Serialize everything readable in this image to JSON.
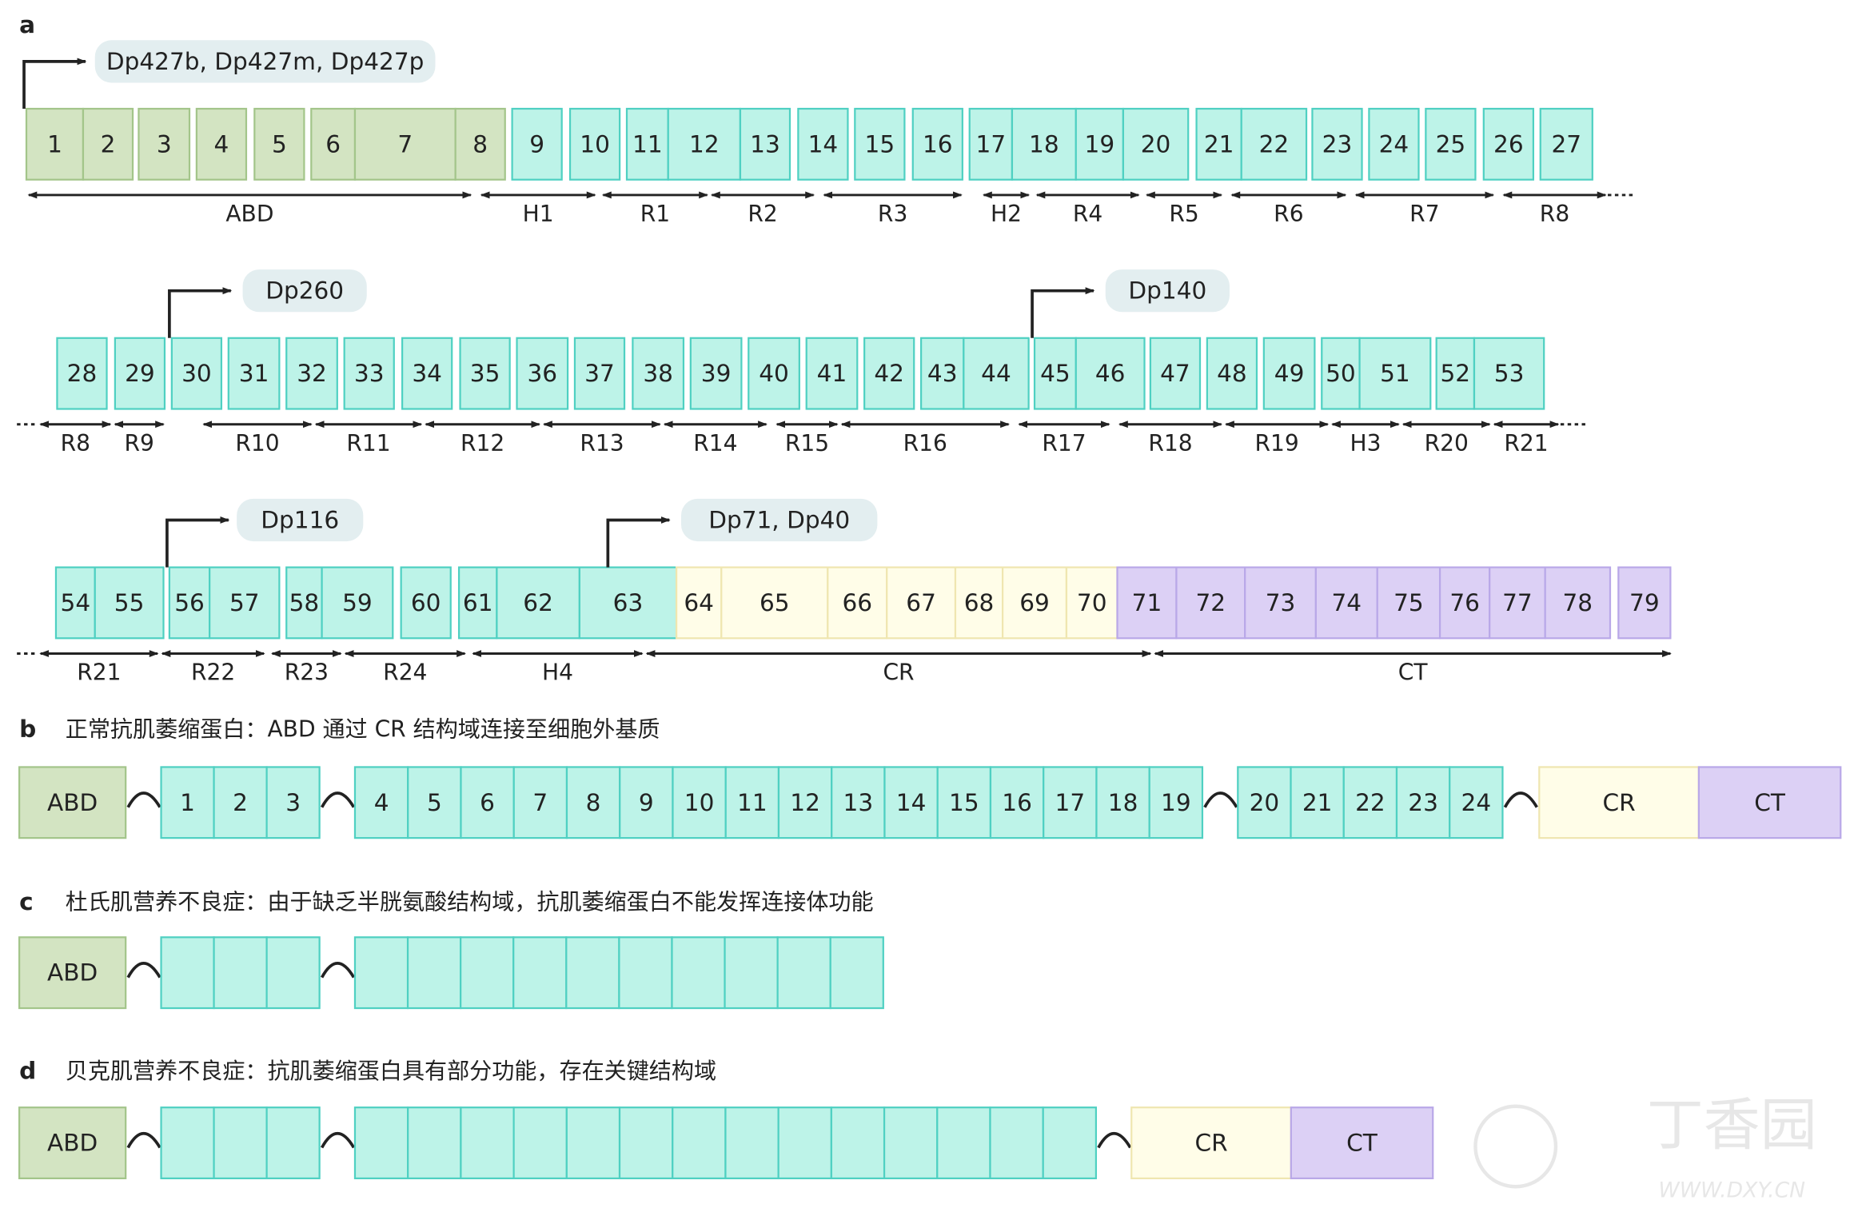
{
  "panel_a": {
    "label": "a",
    "rows": [
      {
        "promoters": [
          "Dp427b, Dp427m, Dp427p"
        ],
        "exons": [
          1,
          2,
          3,
          4,
          5,
          6,
          7,
          8,
          9,
          10,
          11,
          12,
          13,
          14,
          15,
          16,
          17,
          18,
          19,
          20,
          21,
          22,
          23,
          24,
          25,
          26,
          27
        ],
        "domains": [
          "ABD",
          "H1",
          "R1",
          "R2",
          "R3",
          "H2",
          "R4",
          "R5",
          "R6",
          "R7",
          "R8"
        ]
      },
      {
        "promoters": [
          "Dp260",
          "Dp140"
        ],
        "exons": [
          28,
          29,
          30,
          31,
          32,
          33,
          34,
          35,
          36,
          37,
          38,
          39,
          40,
          41,
          42,
          43,
          44,
          45,
          46,
          47,
          48,
          49,
          50,
          51,
          52,
          53
        ],
        "domains": [
          "R8",
          "R9",
          "R10",
          "R11",
          "R12",
          "R13",
          "R14",
          "R15",
          "R16",
          "R17",
          "R18",
          "R19",
          "H3",
          "R20",
          "R21"
        ]
      },
      {
        "promoters": [
          "Dp116",
          "Dp71, Dp40"
        ],
        "exons": [
          54,
          55,
          56,
          57,
          58,
          59,
          60,
          61,
          62,
          63,
          64,
          65,
          66,
          67,
          68,
          69,
          70,
          71,
          72,
          73,
          74,
          75,
          76,
          77,
          78,
          79
        ],
        "domains": [
          "R21",
          "R22",
          "R23",
          "R24",
          "H4",
          "CR",
          "CT"
        ]
      }
    ]
  },
  "panel_b": {
    "label": "b",
    "caption": "正常抗肌萎缩蛋白：ABD 通过 CR 结构域连接至细胞外基质",
    "blocks": [
      "ABD",
      "1",
      "2",
      "3",
      "4",
      "5",
      "6",
      "7",
      "8",
      "9",
      "10",
      "11",
      "12",
      "13",
      "14",
      "15",
      "16",
      "17",
      "18",
      "19",
      "20",
      "21",
      "22",
      "23",
      "24",
      "CR",
      "CT"
    ]
  },
  "panel_c": {
    "label": "c",
    "caption": "杜氏肌营养不良症：由于缺乏半胱氨酸结构域，抗肌萎缩蛋白不能发挥连接体功能",
    "blocks": [
      "ABD"
    ]
  },
  "panel_d": {
    "label": "d",
    "caption": "贝克肌营养不良症：抗肌萎缩蛋白具有部分功能，存在关键结构域",
    "blocks": [
      "ABD",
      "CR",
      "CT"
    ]
  },
  "watermark": {
    "logo": "丁香园",
    "url": "WWW.DXY.CN"
  }
}
